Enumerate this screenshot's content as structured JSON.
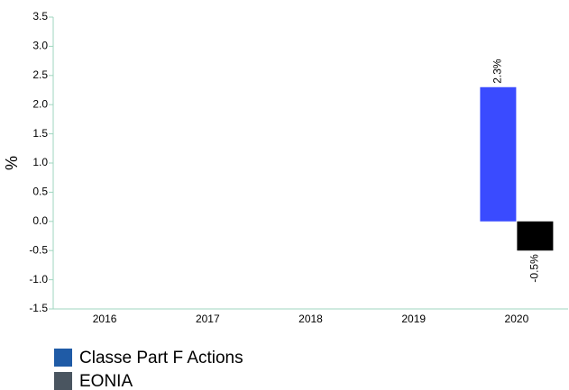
{
  "chart_data": {
    "type": "bar",
    "categories": [
      "2016",
      "2017",
      "2018",
      "2019",
      "2020"
    ],
    "series": [
      {
        "name": "Classe Part F Actions",
        "color": "#3a4bff",
        "legend_color": "#1f5ba6",
        "values": [
          null,
          null,
          null,
          null,
          2.3
        ],
        "value_labels": [
          null,
          null,
          null,
          null,
          "2.3%"
        ]
      },
      {
        "name": "EONIA",
        "color": "#000000",
        "legend_color": "#4a5560",
        "values": [
          null,
          null,
          null,
          null,
          -0.5
        ],
        "value_labels": [
          null,
          null,
          null,
          null,
          "-0.5%"
        ]
      }
    ],
    "ylabel": "%",
    "ylim": [
      -1.5,
      3.5
    ],
    "yticks": [
      -1.5,
      {
        "value": -1,
        "label": "-1.0"
      },
      -0.5,
      {
        "value": 0,
        "label": "0.0"
      },
      0.5,
      {
        "value": 1,
        "label": "1.0"
      },
      1.5,
      {
        "value": 2,
        "label": "2.0"
      },
      2.5,
      {
        "value": 3,
        "label": "3.0"
      },
      3.5
    ],
    "grid": false
  }
}
